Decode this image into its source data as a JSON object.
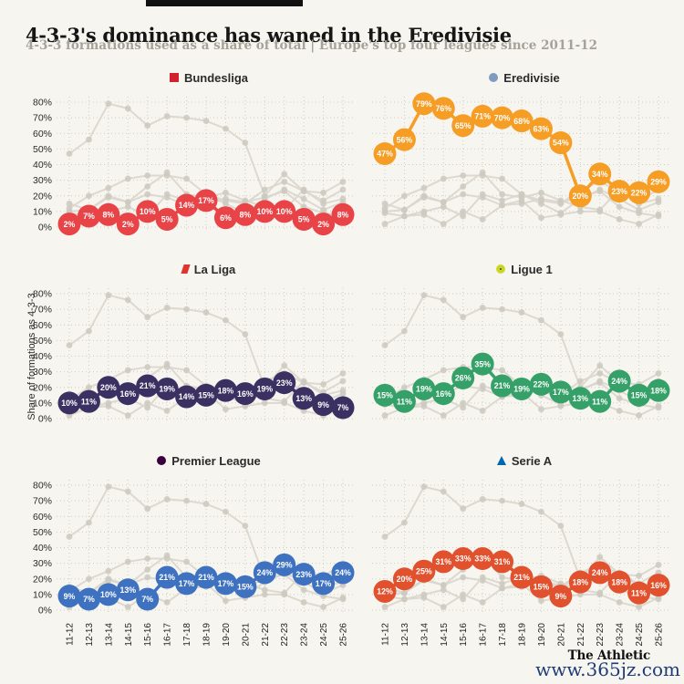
{
  "header": {
    "title": "4-3-3's dominance has waned in the Eredivisie",
    "subtitle": "4-3-3 formations used as a share of total | Europe's top four leagues since 2011-12"
  },
  "axes": {
    "y_title": "Share of formations as 4-3-3",
    "y_ticks": [
      "80%",
      "70%",
      "60%",
      "50%",
      "40%",
      "30%",
      "20%",
      "10%",
      "0%"
    ],
    "x_ticks": [
      "11-12",
      "12-13",
      "13-14",
      "14-15",
      "15-16",
      "16-17",
      "17-18",
      "18-19",
      "19-20",
      "20-21",
      "21-22",
      "22-23",
      "23-24",
      "24-25",
      "25-26"
    ]
  },
  "footer": {
    "brand": "The Athletic",
    "watermark": "www.365jz.com"
  },
  "style": {
    "background": "#f7f5ef",
    "grid_color": "#cfccc3",
    "ghost_line_color": "#d9d6cd",
    "ghost_marker_color": "#ccc9c0",
    "bubble_label_color": "#ffffff"
  },
  "chart_data": {
    "type": "line",
    "title": "4-3-3's dominance has waned in the Eredivisie",
    "subtitle": "4-3-3 formations used as a share of total | Europe's top four leagues since 2011-12",
    "ylabel": "Share of formations as 4-3-3",
    "ylim": [
      0,
      80
    ],
    "y_tick_step": 10,
    "grid": true,
    "legend_position": "panel-headers",
    "categories": [
      "11-12",
      "12-13",
      "13-14",
      "14-15",
      "15-16",
      "16-17",
      "17-18",
      "18-19",
      "19-20",
      "20-21",
      "21-22",
      "22-23",
      "23-24",
      "24-25",
      "25-26"
    ],
    "series": [
      {
        "name": "Bundesliga",
        "color": "#e84448",
        "icon_shape": "square",
        "icon_color": "#d3202e",
        "values": [
          2,
          7,
          8,
          2,
          10,
          5,
          14,
          17,
          6,
          8,
          10,
          10,
          5,
          2,
          8
        ]
      },
      {
        "name": "Eredivisie",
        "color": "#f59d24",
        "icon_shape": "circle",
        "icon_color": "#7f9bbf",
        "values": [
          47,
          56,
          79,
          76,
          65,
          71,
          70,
          68,
          63,
          54,
          20,
          34,
          23,
          22,
          29
        ]
      },
      {
        "name": "La Liga",
        "color": "#3a3162",
        "icon_shape": "slash",
        "icon_color": "#e0352f",
        "values": [
          10,
          11,
          20,
          16,
          21,
          19,
          14,
          15,
          18,
          16,
          19,
          23,
          13,
          9,
          7
        ]
      },
      {
        "name": "Ligue 1",
        "color": "#35a169",
        "icon_shape": "ring",
        "icon_color": "#cddc29",
        "values": [
          15,
          11,
          19,
          16,
          26,
          35,
          21,
          19,
          22,
          17,
          13,
          11,
          24,
          15,
          18
        ]
      },
      {
        "name": "Premier League",
        "color": "#3e72c0",
        "icon_shape": "circle",
        "icon_color": "#38003c",
        "values": [
          9,
          7,
          10,
          13,
          7,
          21,
          17,
          21,
          17,
          15,
          24,
          29,
          23,
          17,
          24
        ]
      },
      {
        "name": "Serie A",
        "color": "#e1512d",
        "icon_shape": "triangle",
        "icon_color": "#0067b1",
        "values": [
          12,
          20,
          25,
          31,
          33,
          33,
          31,
          21,
          15,
          9,
          18,
          24,
          18,
          11,
          16
        ]
      }
    ]
  }
}
